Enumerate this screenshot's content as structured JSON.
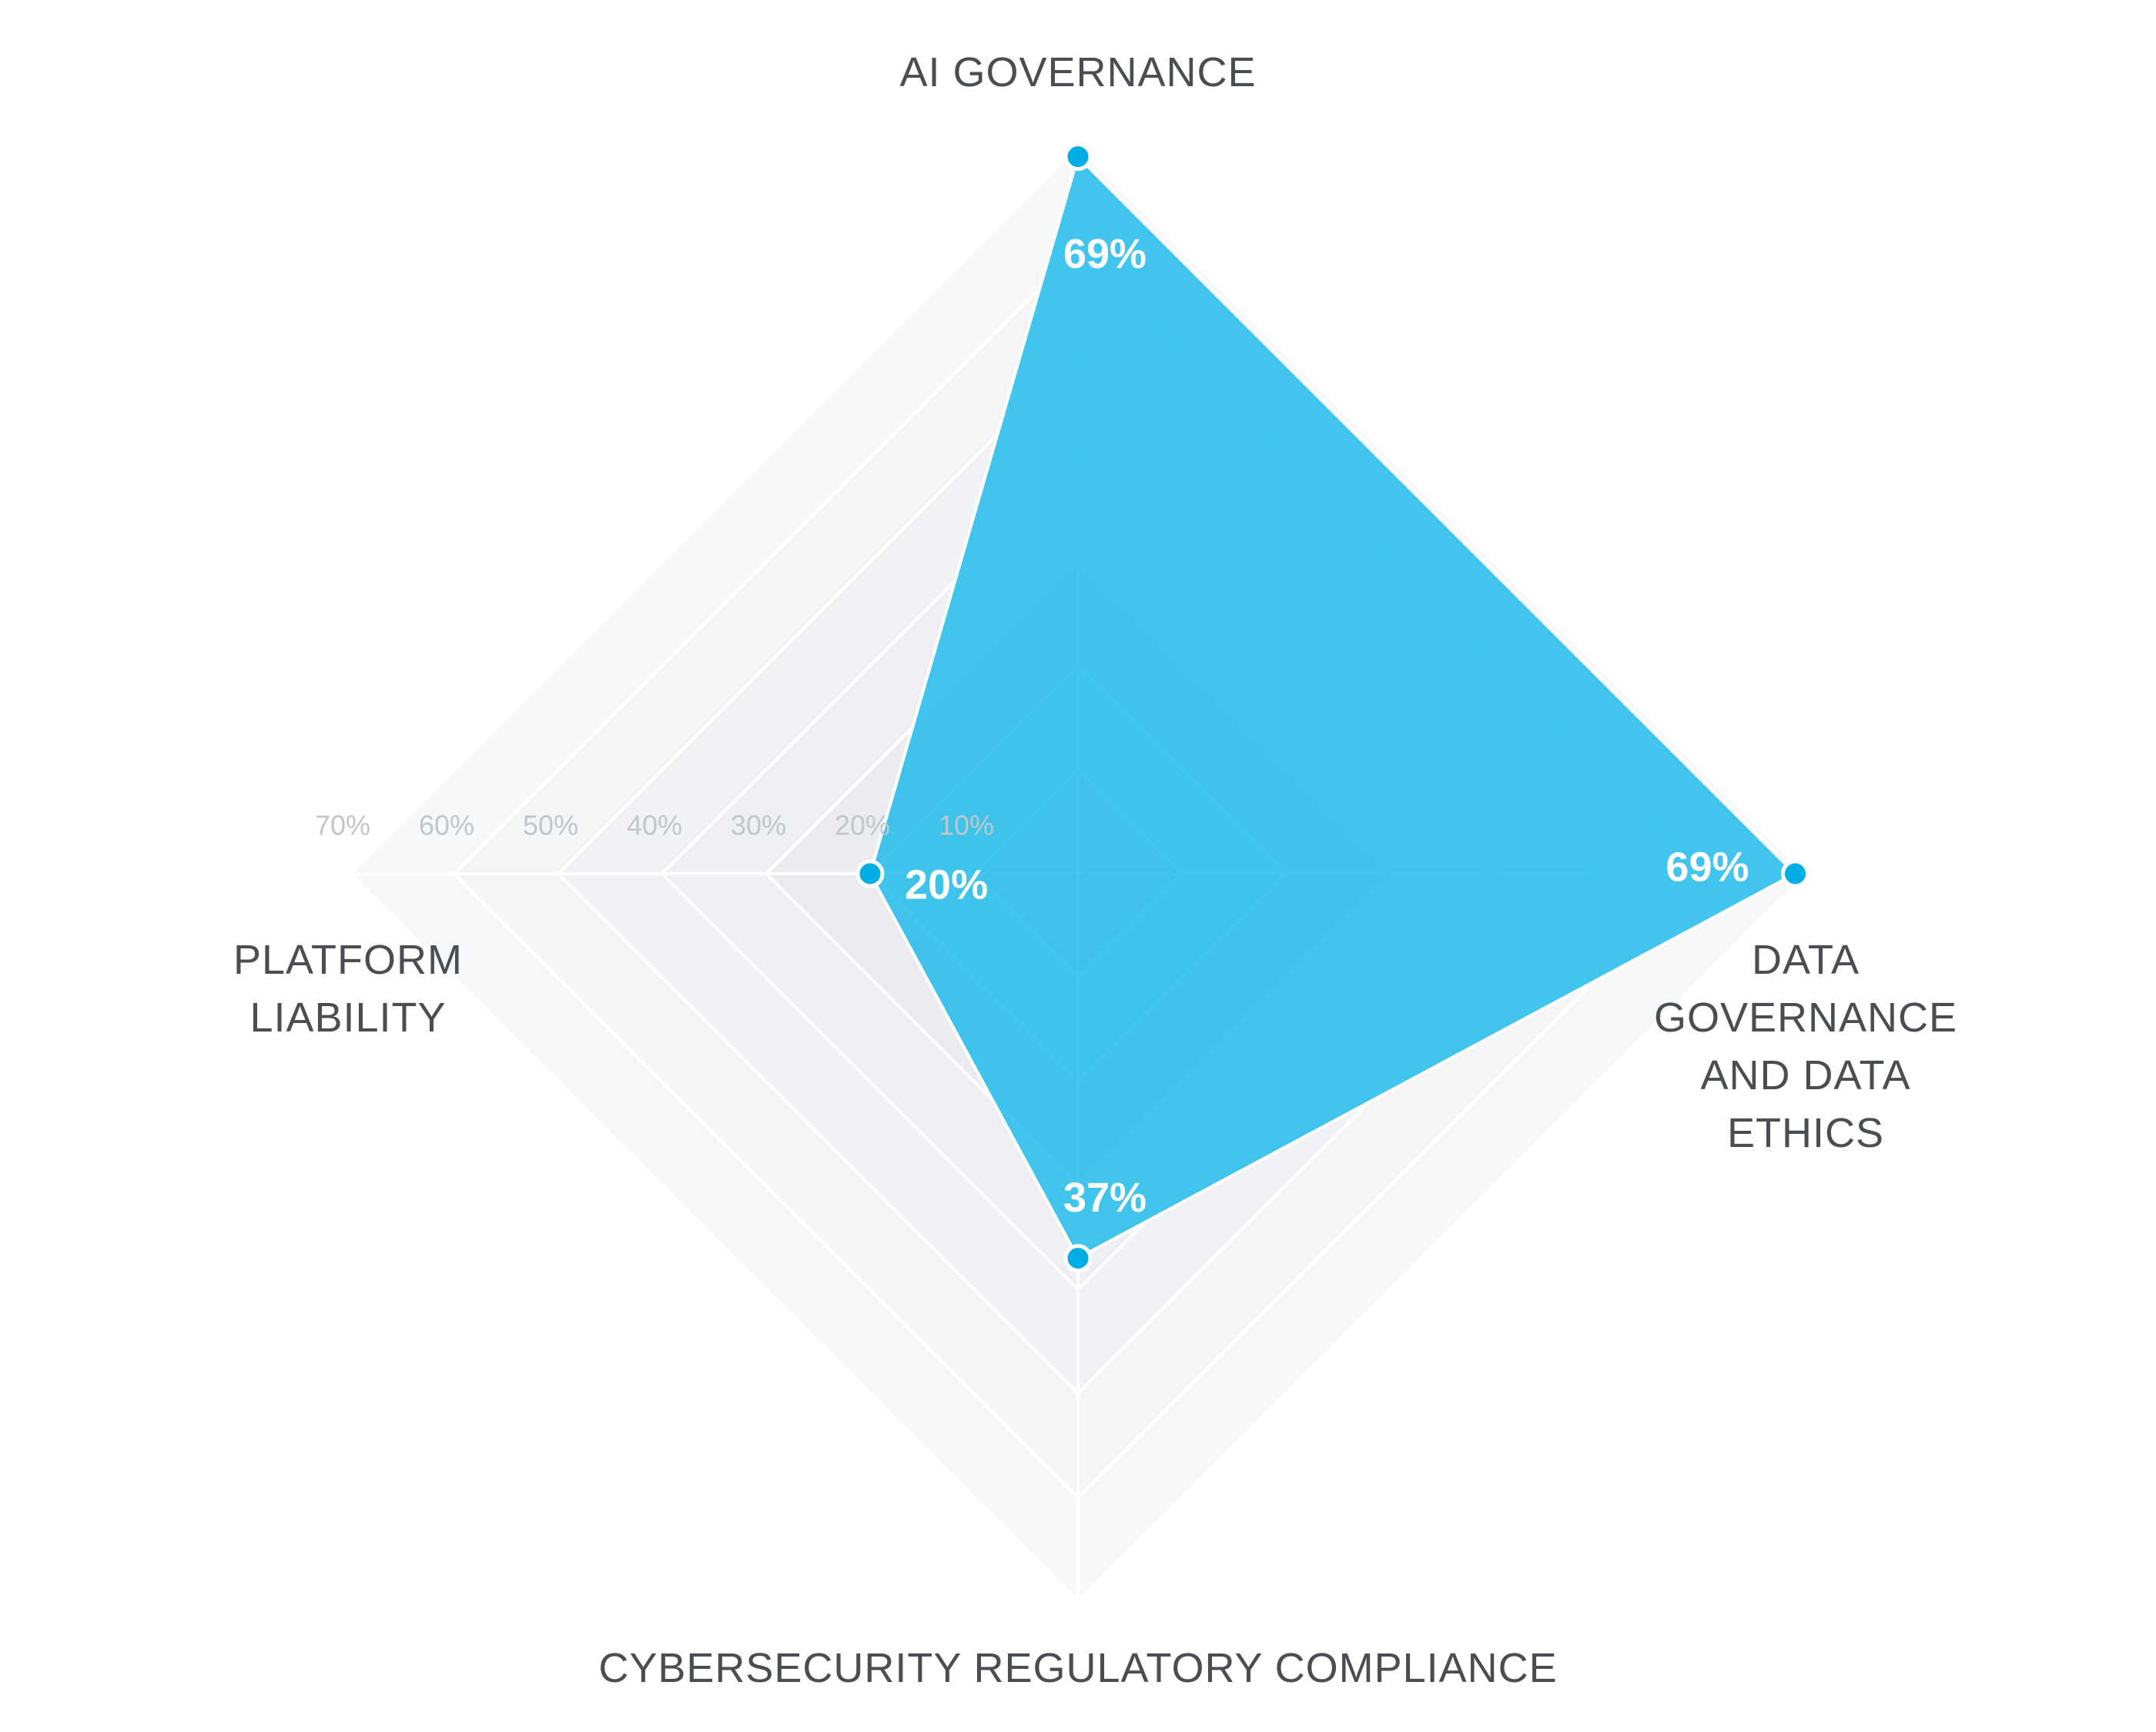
{
  "chart_data": {
    "type": "radar",
    "axes": [
      "AI GOVERNANCE",
      "DATA GOVERNANCE AND DATA ETHICS",
      "CYBERSECURITY REGULATORY COMPLIANCE",
      "PLATFORM LIABILITY"
    ],
    "axis_label_lines": [
      [
        "AI GOVERNANCE"
      ],
      [
        "DATA",
        "GOVERNANCE",
        "AND DATA",
        "ETHICS"
      ],
      [
        "CYBERSECURITY REGULATORY COMPLIANCE"
      ],
      [
        "PLATFORM",
        "LIABILITY"
      ]
    ],
    "values": [
      69,
      69,
      37,
      20
    ],
    "value_labels": [
      "69%",
      "69%",
      "37%",
      "20%"
    ],
    "range": [
      0,
      70
    ],
    "ticks": [
      10,
      20,
      30,
      40,
      50,
      60,
      70
    ],
    "tick_labels": [
      "10%",
      "20%",
      "30%",
      "40%",
      "50%",
      "60%",
      "70%"
    ],
    "colors": {
      "fill": "#1ebbeb",
      "marker": "#00aee6",
      "ring_outer": "#f7f8fa",
      "ring_inner": "#e4e6ea",
      "grid": "#ffffff"
    }
  }
}
